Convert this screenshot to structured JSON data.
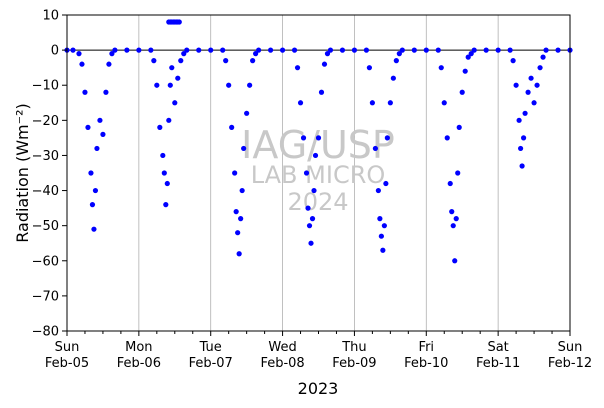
{
  "chart_data": {
    "type": "scatter",
    "ylabel": "Radiation (Wm⁻²)",
    "xlabel": "2023",
    "ylim": [
      -80,
      10
    ],
    "xlim": [
      "2023-02-05",
      "2023-02-12"
    ],
    "yticks": [
      10,
      0,
      -10,
      -20,
      -30,
      -40,
      -50,
      -60,
      -70,
      -80
    ],
    "xticks": [
      {
        "day": "Sun",
        "date": "Feb-05"
      },
      {
        "day": "Mon",
        "date": "Feb-06"
      },
      {
        "day": "Tue",
        "date": "Feb-07"
      },
      {
        "day": "Wed",
        "date": "Feb-08"
      },
      {
        "day": "Thu",
        "date": "Feb-09"
      },
      {
        "day": "Fri",
        "date": "Feb-10"
      },
      {
        "day": "Sat",
        "date": "Feb-11"
      },
      {
        "day": "Sun",
        "date": "Feb-12"
      }
    ],
    "grid": "vertical",
    "zero_line": true,
    "marker_color": "#0000ff",
    "series": [
      {
        "points": [
          [
            "2023-02-05 00:00",
            0
          ],
          [
            "2023-02-05 02:00",
            0
          ],
          [
            "2023-02-05 04:00",
            -1
          ],
          [
            "2023-02-05 05:00",
            -4
          ],
          [
            "2023-02-05 06:00",
            -12
          ],
          [
            "2023-02-05 07:00",
            -22
          ],
          [
            "2023-02-05 08:00",
            -35
          ],
          [
            "2023-02-05 08:30",
            -44
          ],
          [
            "2023-02-05 09:00",
            -51
          ],
          [
            "2023-02-05 09:30",
            -40
          ],
          [
            "2023-02-05 10:00",
            -28
          ],
          [
            "2023-02-05 11:00",
            -20
          ],
          [
            "2023-02-05 12:00",
            -24
          ],
          [
            "2023-02-05 13:00",
            -12
          ],
          [
            "2023-02-05 14:00",
            -4
          ],
          [
            "2023-02-05 15:00",
            -1
          ],
          [
            "2023-02-05 16:00",
            0
          ],
          [
            "2023-02-05 20:00",
            0
          ],
          [
            "2023-02-06 00:00",
            0
          ],
          [
            "2023-02-06 04:00",
            0
          ],
          [
            "2023-02-06 05:00",
            -3
          ],
          [
            "2023-02-06 06:00",
            -10
          ],
          [
            "2023-02-06 07:00",
            -22
          ],
          [
            "2023-02-06 08:00",
            -30
          ],
          [
            "2023-02-06 08:30",
            -35
          ],
          [
            "2023-02-06 09:00",
            -44
          ],
          [
            "2023-02-06 09:30",
            -38
          ],
          [
            "2023-02-06 10:00",
            -20
          ],
          [
            "2023-02-06 10:30",
            -10
          ],
          [
            "2023-02-06 11:00",
            -5
          ],
          [
            "2023-02-06 12:00",
            -15
          ],
          [
            "2023-02-06 13:00",
            -8
          ],
          [
            "2023-02-06 14:00",
            -3
          ],
          [
            "2023-02-06 15:00",
            -1
          ],
          [
            "2023-02-06 10:00",
            8
          ],
          [
            "2023-02-06 10:30",
            8
          ],
          [
            "2023-02-06 11:00",
            8
          ],
          [
            "2023-02-06 11:30",
            8
          ],
          [
            "2023-02-06 12:00",
            8
          ],
          [
            "2023-02-06 12:30",
            8
          ],
          [
            "2023-02-06 13:00",
            8
          ],
          [
            "2023-02-06 13:30",
            8
          ],
          [
            "2023-02-06 16:00",
            0
          ],
          [
            "2023-02-06 20:00",
            0
          ],
          [
            "2023-02-07 00:00",
            0
          ],
          [
            "2023-02-07 04:00",
            0
          ],
          [
            "2023-02-07 05:00",
            -3
          ],
          [
            "2023-02-07 06:00",
            -10
          ],
          [
            "2023-02-07 07:00",
            -22
          ],
          [
            "2023-02-07 08:00",
            -35
          ],
          [
            "2023-02-07 08:30",
            -46
          ],
          [
            "2023-02-07 09:00",
            -52
          ],
          [
            "2023-02-07 09:30",
            -58
          ],
          [
            "2023-02-07 10:00",
            -48
          ],
          [
            "2023-02-07 10:30",
            -40
          ],
          [
            "2023-02-07 11:00",
            -28
          ],
          [
            "2023-02-07 12:00",
            -18
          ],
          [
            "2023-02-07 13:00",
            -10
          ],
          [
            "2023-02-07 14:00",
            -3
          ],
          [
            "2023-02-07 15:00",
            -1
          ],
          [
            "2023-02-07 16:00",
            0
          ],
          [
            "2023-02-07 20:00",
            0
          ],
          [
            "2023-02-08 00:00",
            0
          ],
          [
            "2023-02-08 04:00",
            0
          ],
          [
            "2023-02-08 05:00",
            -5
          ],
          [
            "2023-02-08 06:00",
            -15
          ],
          [
            "2023-02-08 07:00",
            -25
          ],
          [
            "2023-02-08 08:00",
            -35
          ],
          [
            "2023-02-08 08:30",
            -45
          ],
          [
            "2023-02-08 09:00",
            -50
          ],
          [
            "2023-02-08 09:30",
            -55
          ],
          [
            "2023-02-08 10:00",
            -48
          ],
          [
            "2023-02-08 10:30",
            -40
          ],
          [
            "2023-02-08 11:00",
            -30
          ],
          [
            "2023-02-08 12:00",
            -25
          ],
          [
            "2023-02-08 13:00",
            -12
          ],
          [
            "2023-02-08 14:00",
            -4
          ],
          [
            "2023-02-08 15:00",
            -1
          ],
          [
            "2023-02-08 16:00",
            0
          ],
          [
            "2023-02-08 20:00",
            0
          ],
          [
            "2023-02-09 00:00",
            0
          ],
          [
            "2023-02-09 04:00",
            0
          ],
          [
            "2023-02-09 05:00",
            -5
          ],
          [
            "2023-02-09 06:00",
            -15
          ],
          [
            "2023-02-09 07:00",
            -28
          ],
          [
            "2023-02-09 08:00",
            -40
          ],
          [
            "2023-02-09 08:30",
            -48
          ],
          [
            "2023-02-09 09:00",
            -53
          ],
          [
            "2023-02-09 09:30",
            -57
          ],
          [
            "2023-02-09 10:00",
            -50
          ],
          [
            "2023-02-09 10:30",
            -38
          ],
          [
            "2023-02-09 11:00",
            -25
          ],
          [
            "2023-02-09 12:00",
            -15
          ],
          [
            "2023-02-09 13:00",
            -8
          ],
          [
            "2023-02-09 14:00",
            -3
          ],
          [
            "2023-02-09 15:00",
            -1
          ],
          [
            "2023-02-09 16:00",
            0
          ],
          [
            "2023-02-09 20:00",
            0
          ],
          [
            "2023-02-10 00:00",
            0
          ],
          [
            "2023-02-10 04:00",
            0
          ],
          [
            "2023-02-10 05:00",
            -5
          ],
          [
            "2023-02-10 06:00",
            -15
          ],
          [
            "2023-02-10 07:00",
            -25
          ],
          [
            "2023-02-10 08:00",
            -38
          ],
          [
            "2023-02-10 08:30",
            -46
          ],
          [
            "2023-02-10 09:00",
            -50
          ],
          [
            "2023-02-10 09:30",
            -60
          ],
          [
            "2023-02-10 10:00",
            -48
          ],
          [
            "2023-02-10 10:30",
            -35
          ],
          [
            "2023-02-10 11:00",
            -22
          ],
          [
            "2023-02-10 12:00",
            -12
          ],
          [
            "2023-02-10 13:00",
            -6
          ],
          [
            "2023-02-10 14:00",
            -2
          ],
          [
            "2023-02-10 15:00",
            -1
          ],
          [
            "2023-02-10 16:00",
            0
          ],
          [
            "2023-02-10 20:00",
            0
          ],
          [
            "2023-02-11 00:00",
            0
          ],
          [
            "2023-02-11 04:00",
            0
          ],
          [
            "2023-02-11 05:00",
            -3
          ],
          [
            "2023-02-11 06:00",
            -10
          ],
          [
            "2023-02-11 07:00",
            -20
          ],
          [
            "2023-02-11 07:30",
            -28
          ],
          [
            "2023-02-11 08:00",
            -33
          ],
          [
            "2023-02-11 08:30",
            -25
          ],
          [
            "2023-02-11 09:00",
            -18
          ],
          [
            "2023-02-11 10:00",
            -12
          ],
          [
            "2023-02-11 11:00",
            -8
          ],
          [
            "2023-02-11 12:00",
            -15
          ],
          [
            "2023-02-11 13:00",
            -10
          ],
          [
            "2023-02-11 14:00",
            -5
          ],
          [
            "2023-02-11 15:00",
            -2
          ],
          [
            "2023-02-11 16:00",
            0
          ],
          [
            "2023-02-11 20:00",
            0
          ],
          [
            "2023-02-12 00:00",
            0
          ]
        ]
      }
    ],
    "watermark": {
      "line1": "IAG/USP",
      "line2": "LAB MICRO",
      "line3": "2024"
    }
  }
}
